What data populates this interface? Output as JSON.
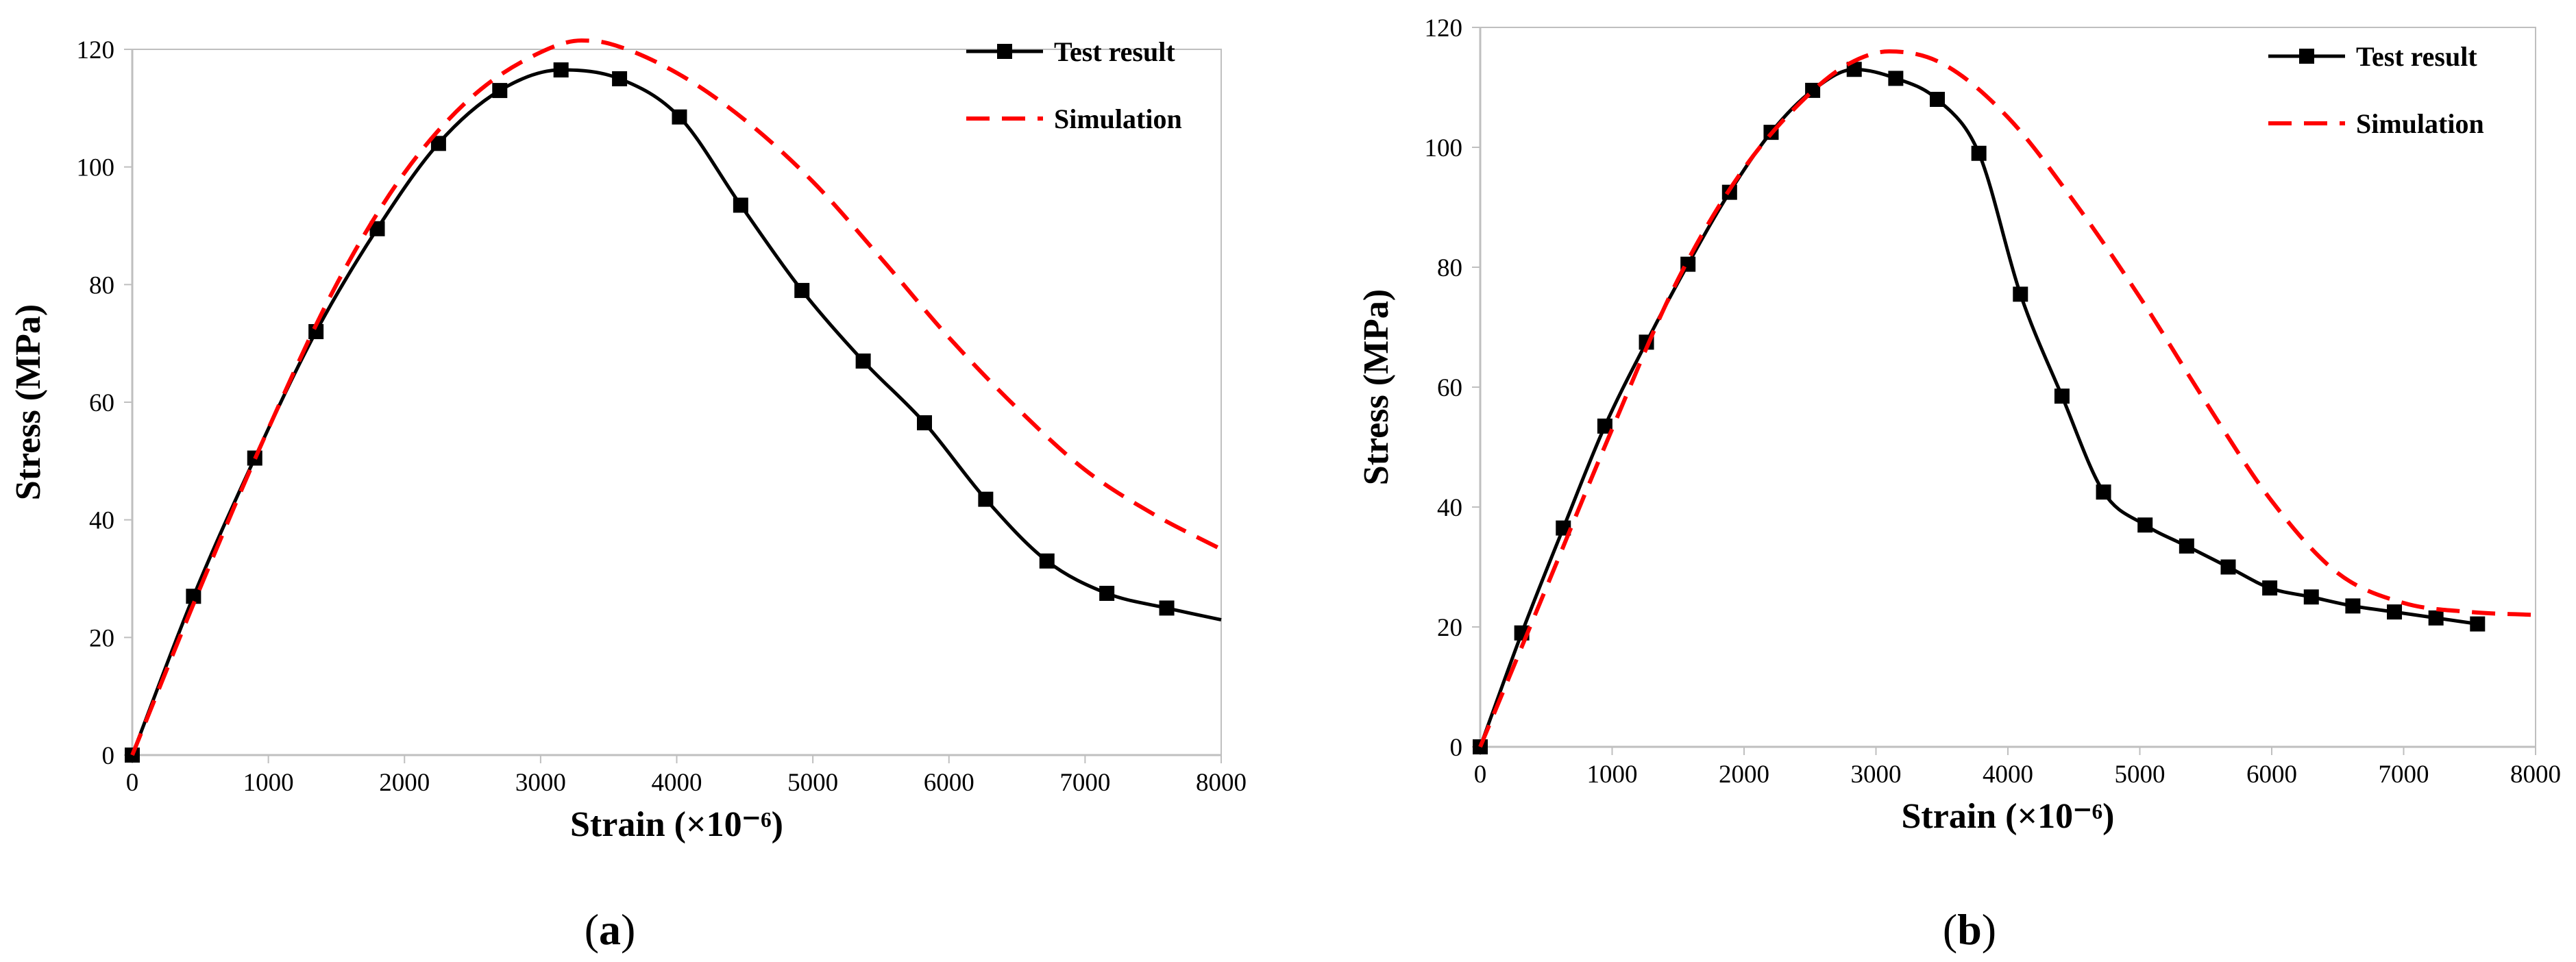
{
  "chart_data": [
    {
      "type": "line",
      "panel_label": "a",
      "caption": "(a)",
      "xlabel": "Strain (×10⁻⁶)",
      "ylabel": "Stress (MPa)",
      "xlim": [
        0,
        8000
      ],
      "ylim": [
        0,
        120
      ],
      "xticks": [
        0,
        1000,
        2000,
        3000,
        4000,
        5000,
        6000,
        7000,
        8000
      ],
      "yticks": [
        0,
        20,
        40,
        60,
        80,
        100,
        120
      ],
      "legend_position": "top-right",
      "series": [
        {
          "name": "Test result",
          "style": "solid-square-markers",
          "color": "#000000",
          "x": [
            0,
            450,
            900,
            1350,
            1800,
            2250,
            2700,
            3150,
            3580,
            4020,
            4470,
            4920,
            5370,
            5820,
            6270,
            6720,
            7160,
            7600,
            8000
          ],
          "y": [
            0,
            27,
            50.5,
            72,
            89.5,
            104,
            113,
            116.5,
            115,
            108.5,
            93.5,
            79,
            67,
            56.5,
            43.5,
            33,
            27.5,
            25,
            23
          ],
          "markers": [
            true,
            true,
            true,
            true,
            true,
            true,
            true,
            true,
            true,
            true,
            true,
            true,
            true,
            true,
            true,
            true,
            true,
            true,
            false
          ]
        },
        {
          "name": "Simulation",
          "style": "dashed",
          "color": "#ff0000",
          "x": [
            0,
            500,
            1000,
            1500,
            2000,
            2500,
            3000,
            3300,
            3500,
            4000,
            4500,
            5000,
            5500,
            6000,
            6500,
            7000,
            7500,
            8000
          ],
          "y": [
            0,
            28.5,
            55.5,
            80,
            99,
            112,
            119.5,
            121.5,
            121,
            116,
            108,
            97.5,
            84.5,
            71,
            59,
            48.5,
            41,
            35
          ]
        }
      ]
    },
    {
      "type": "line",
      "panel_label": "b",
      "caption": "(b)",
      "xlabel": "Strain (×10⁻⁶)",
      "ylabel": "Stress (MPa)",
      "xlim": [
        0,
        8000
      ],
      "ylim": [
        0,
        120
      ],
      "xticks": [
        0,
        1000,
        2000,
        3000,
        4000,
        5000,
        6000,
        7000,
        8000
      ],
      "yticks": [
        0,
        20,
        40,
        60,
        80,
        100,
        120
      ],
      "legend_position": "top-right",
      "series": [
        {
          "name": "Test result",
          "style": "solid-square-markers",
          "color": "#000000",
          "x": [
            0,
            315,
            630,
            945,
            1260,
            1575,
            1890,
            2205,
            2520,
            2835,
            3150,
            3465,
            3780,
            4095,
            4410,
            4725,
            5040,
            5355,
            5670,
            5985,
            6300,
            6615,
            6930,
            7245,
            7560
          ],
          "y": [
            0,
            19,
            36.5,
            53.5,
            67.5,
            80.5,
            92.5,
            102.5,
            109.5,
            113,
            111.5,
            108,
            99,
            75.5,
            58.5,
            42.5,
            37,
            33.5,
            30,
            26.5,
            25,
            23.5,
            22.5,
            21.5,
            20.5
          ]
        },
        {
          "name": "Simulation",
          "style": "dashed",
          "color": "#ff0000",
          "x": [
            0,
            500,
            1000,
            1500,
            2000,
            2500,
            2800,
            3100,
            3500,
            4000,
            4500,
            5000,
            5500,
            6000,
            6500,
            7000,
            7500,
            8000
          ],
          "y": [
            0,
            26.5,
            53,
            78,
            96.5,
            109,
            114,
            116,
            114,
            105,
            91,
            75,
            57.5,
            41,
            29,
            24,
            22.5,
            22
          ]
        }
      ]
    }
  ]
}
